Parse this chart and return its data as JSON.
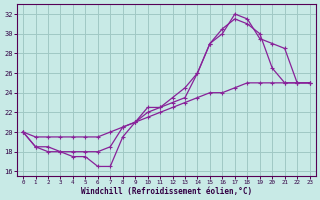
{
  "xlabel": "Windchill (Refroidissement éolien,°C)",
  "xlim": [
    -0.5,
    23.5
  ],
  "ylim": [
    15.5,
    33
  ],
  "xtick_labels": [
    "0",
    "1",
    "2",
    "3",
    "4",
    "5",
    "6",
    "7",
    "8",
    "9",
    "10",
    "11",
    "12",
    "13",
    "14",
    "15",
    "16",
    "17",
    "18",
    "19",
    "20",
    "21",
    "22",
    "23"
  ],
  "ytick_values": [
    16,
    18,
    20,
    22,
    24,
    26,
    28,
    30,
    32
  ],
  "bg_color": "#c8eae6",
  "grid_color": "#a0c8c4",
  "line_color": "#882299",
  "line1_x": [
    0,
    1,
    2,
    3,
    4,
    5,
    6,
    7,
    8,
    9,
    10,
    11,
    12,
    13,
    14,
    15,
    16,
    17,
    18,
    19,
    20,
    21,
    22,
    23
  ],
  "line1_y": [
    20,
    18.5,
    18,
    18,
    17.5,
    17.5,
    16.5,
    16.5,
    19.5,
    21,
    22.5,
    22.5,
    23.5,
    24.5,
    26,
    29,
    30.5,
    31.5,
    31,
    30,
    26.5,
    25,
    25,
    25
  ],
  "line2_x": [
    0,
    1,
    2,
    3,
    4,
    5,
    6,
    7,
    8,
    9,
    10,
    11,
    12,
    13,
    14,
    15,
    16,
    17,
    18,
    19,
    20,
    21,
    22,
    23
  ],
  "line2_y": [
    20,
    18.5,
    18.5,
    18,
    18,
    18,
    18,
    18.5,
    20.5,
    21,
    22,
    22.5,
    23,
    23.5,
    26,
    29,
    30,
    32,
    31.5,
    29.5,
    29,
    28.5,
    25,
    25
  ],
  "line3_x": [
    0,
    1,
    2,
    3,
    4,
    5,
    6,
    7,
    8,
    9,
    10,
    11,
    12,
    13,
    14,
    15,
    16,
    17,
    18,
    19,
    20,
    21,
    22,
    23
  ],
  "line3_y": [
    20,
    19.5,
    19.5,
    19.5,
    19.5,
    19.5,
    19.5,
    20,
    20.5,
    21,
    21.5,
    22,
    22.5,
    23,
    23.5,
    24,
    24,
    24.5,
    25,
    25,
    25,
    25,
    25,
    25
  ],
  "marker": "+"
}
